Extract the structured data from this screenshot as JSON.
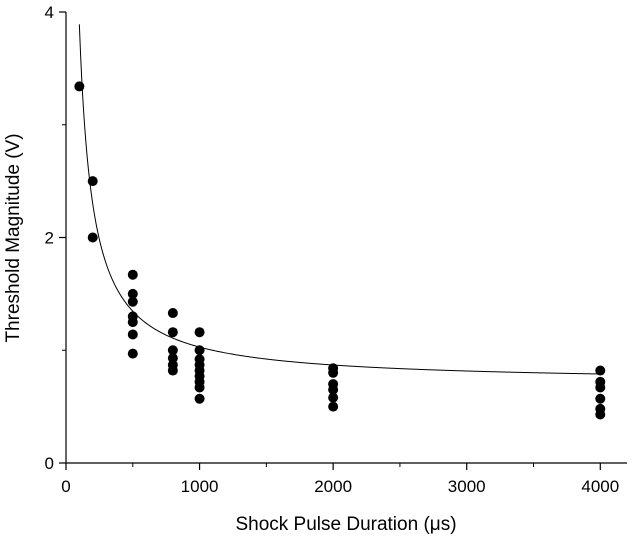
{
  "chart_data": {
    "type": "scatter",
    "title": "",
    "xlabel": "Shock Pulse Duration (μs)",
    "ylabel": "Threshold Magnitude (V)",
    "xlim": [
      0,
      4200
    ],
    "ylim": [
      0,
      4
    ],
    "x_ticks": [
      0,
      1000,
      2000,
      3000,
      4000
    ],
    "x_tick_labels": [
      "0",
      "1000",
      "2000",
      "3000",
      "4000"
    ],
    "y_ticks": [
      0,
      2,
      4
    ],
    "y_tick_labels": [
      "0",
      "2",
      "4"
    ],
    "grid": false,
    "legend": "none",
    "series": [
      {
        "kind": "points",
        "color": "#000000",
        "points": [
          [
            100,
            3.34
          ],
          [
            200,
            2.5
          ],
          [
            200,
            2.0
          ],
          [
            500,
            1.67
          ],
          [
            500,
            1.5
          ],
          [
            500,
            1.43
          ],
          [
            500,
            1.3
          ],
          [
            500,
            1.25
          ],
          [
            500,
            1.14
          ],
          [
            500,
            0.97
          ],
          [
            800,
            1.33
          ],
          [
            800,
            1.16
          ],
          [
            800,
            1.0
          ],
          [
            800,
            0.93
          ],
          [
            800,
            0.87
          ],
          [
            800,
            0.82
          ],
          [
            1000,
            1.16
          ],
          [
            1000,
            1.0
          ],
          [
            1000,
            0.92
          ],
          [
            1000,
            0.87
          ],
          [
            1000,
            0.82
          ],
          [
            1000,
            0.77
          ],
          [
            1000,
            0.72
          ],
          [
            1000,
            0.67
          ],
          [
            1000,
            0.57
          ],
          [
            2000,
            0.84
          ],
          [
            2000,
            0.8
          ],
          [
            2000,
            0.7
          ],
          [
            2000,
            0.65
          ],
          [
            2000,
            0.58
          ],
          [
            2000,
            0.5
          ],
          [
            4000,
            0.82
          ],
          [
            4000,
            0.72
          ],
          [
            4000,
            0.67
          ],
          [
            4000,
            0.57
          ],
          [
            4000,
            0.48
          ],
          [
            4000,
            0.43
          ]
        ]
      },
      {
        "kind": "fit-curve",
        "color": "#000000",
        "model": "y = a + b / x",
        "a": 0.71,
        "b": 318,
        "x_range": [
          100,
          4000
        ]
      }
    ]
  }
}
